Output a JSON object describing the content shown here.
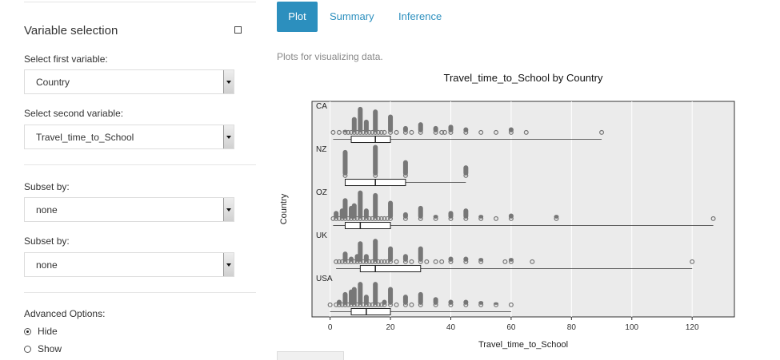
{
  "sidebar": {
    "title": "Variable selection",
    "first_label": "Select first variable:",
    "first_value": "Country",
    "second_label": "Select second variable:",
    "second_value": "Travel_time_to_School",
    "subset1_label": "Subset by:",
    "subset1_value": "none",
    "subset2_label": "Subset by:",
    "subset2_value": "none",
    "advanced_label": "Advanced Options:",
    "advanced_options": [
      "Hide",
      "Show"
    ],
    "advanced_selected": "Hide"
  },
  "tabs": [
    {
      "label": "Plot",
      "active": true
    },
    {
      "label": "Summary",
      "active": false
    },
    {
      "label": "Inference",
      "active": false
    }
  ],
  "description": "Plots for visualizing data.",
  "colors": {
    "accent": "#2c8fbe",
    "panel_bg": "#ebebeb",
    "points": "#777777"
  },
  "chart_data": {
    "type": "boxplot",
    "title": "Travel_time_to_School by Country",
    "xlabel": "Travel_time_to_School",
    "ylabel": "Country",
    "xlim": [
      -6,
      134
    ],
    "xticks": [
      0,
      20,
      40,
      60,
      80,
      100,
      120
    ],
    "grid": true,
    "groups": [
      {
        "name": "CA",
        "box": {
          "whisker_low": 1,
          "q1": 7,
          "median": 15,
          "q3": 20,
          "whisker_high": 90
        },
        "dots": [
          1,
          3,
          5,
          6,
          7,
          8,
          9,
          10,
          11,
          12,
          13,
          14,
          15,
          16,
          17,
          18,
          20,
          22,
          25,
          27,
          30,
          35,
          37,
          38,
          40,
          45,
          50,
          55,
          60,
          65,
          90
        ],
        "stacks": [
          {
            "x": 5,
            "h": 2
          },
          {
            "x": 8,
            "h": 12
          },
          {
            "x": 10,
            "h": 20
          },
          {
            "x": 12,
            "h": 10
          },
          {
            "x": 15,
            "h": 18
          },
          {
            "x": 20,
            "h": 14
          },
          {
            "x": 25,
            "h": 5
          },
          {
            "x": 30,
            "h": 8
          },
          {
            "x": 35,
            "h": 5
          },
          {
            "x": 40,
            "h": 6
          },
          {
            "x": 45,
            "h": 4
          },
          {
            "x": 60,
            "h": 4
          }
        ]
      },
      {
        "name": "NZ",
        "box": {
          "whisker_low": 5,
          "q1": 5,
          "median": 15,
          "q3": 25,
          "whisker_high": 45
        },
        "dots": [
          5,
          15,
          25,
          45
        ],
        "stacks": [
          {
            "x": 5,
            "h": 20
          },
          {
            "x": 15,
            "h": 24
          },
          {
            "x": 25,
            "h": 12
          },
          {
            "x": 45,
            "h": 8
          }
        ]
      },
      {
        "name": "OZ",
        "box": {
          "whisker_low": 1,
          "q1": 5,
          "median": 10,
          "q3": 20,
          "whisker_high": 127
        },
        "dots": [
          1,
          2,
          3,
          4,
          5,
          6,
          7,
          8,
          9,
          10,
          11,
          12,
          13,
          14,
          15,
          16,
          17,
          18,
          19,
          20,
          25,
          30,
          35,
          40,
          45,
          50,
          55,
          60,
          75,
          127
        ],
        "stacks": [
          {
            "x": 2,
            "h": 6
          },
          {
            "x": 4,
            "h": 8
          },
          {
            "x": 5,
            "h": 16
          },
          {
            "x": 7,
            "h": 10
          },
          {
            "x": 8,
            "h": 12
          },
          {
            "x": 10,
            "h": 22
          },
          {
            "x": 12,
            "h": 8
          },
          {
            "x": 15,
            "h": 20
          },
          {
            "x": 20,
            "h": 14
          },
          {
            "x": 25,
            "h": 5
          },
          {
            "x": 30,
            "h": 10
          },
          {
            "x": 35,
            "h": 3
          },
          {
            "x": 40,
            "h": 6
          },
          {
            "x": 45,
            "h": 8
          },
          {
            "x": 50,
            "h": 3
          },
          {
            "x": 60,
            "h": 4
          },
          {
            "x": 75,
            "h": 3
          }
        ]
      },
      {
        "name": "UK",
        "box": {
          "whisker_low": 2,
          "q1": 10,
          "median": 15,
          "q3": 30,
          "whisker_high": 120
        },
        "dots": [
          2,
          3,
          4,
          5,
          6,
          7,
          8,
          9,
          10,
          11,
          12,
          13,
          14,
          15,
          16,
          17,
          18,
          19,
          20,
          22,
          25,
          27,
          30,
          32,
          35,
          37,
          40,
          45,
          50,
          58,
          60,
          67,
          120
        ],
        "stacks": [
          {
            "x": 5,
            "h": 8
          },
          {
            "x": 7,
            "h": 4
          },
          {
            "x": 9,
            "h": 6
          },
          {
            "x": 10,
            "h": 16
          },
          {
            "x": 12,
            "h": 6
          },
          {
            "x": 15,
            "h": 18
          },
          {
            "x": 20,
            "h": 12
          },
          {
            "x": 25,
            "h": 6
          },
          {
            "x": 30,
            "h": 12
          },
          {
            "x": 40,
            "h": 4
          },
          {
            "x": 45,
            "h": 4
          },
          {
            "x": 50,
            "h": 3
          },
          {
            "x": 60,
            "h": 3
          }
        ]
      },
      {
        "name": "USA",
        "box": {
          "whisker_low": 0,
          "q1": 7,
          "median": 12,
          "q3": 20,
          "whisker_high": 60
        },
        "dots": [
          0,
          2,
          3,
          4,
          5,
          6,
          7,
          8,
          9,
          10,
          11,
          12,
          13,
          14,
          15,
          16,
          17,
          18,
          20,
          22,
          25,
          27,
          30,
          35,
          40,
          45,
          50,
          55,
          60
        ],
        "stacks": [
          {
            "x": 3,
            "h": 4
          },
          {
            "x": 5,
            "h": 10
          },
          {
            "x": 7,
            "h": 12
          },
          {
            "x": 8,
            "h": 14
          },
          {
            "x": 10,
            "h": 18
          },
          {
            "x": 12,
            "h": 8
          },
          {
            "x": 15,
            "h": 18
          },
          {
            "x": 18,
            "h": 4
          },
          {
            "x": 20,
            "h": 14
          },
          {
            "x": 25,
            "h": 8
          },
          {
            "x": 30,
            "h": 10
          },
          {
            "x": 35,
            "h": 6
          },
          {
            "x": 40,
            "h": 4
          },
          {
            "x": 45,
            "h": 4
          },
          {
            "x": 50,
            "h": 3
          },
          {
            "x": 55,
            "h": 2
          }
        ]
      }
    ]
  }
}
